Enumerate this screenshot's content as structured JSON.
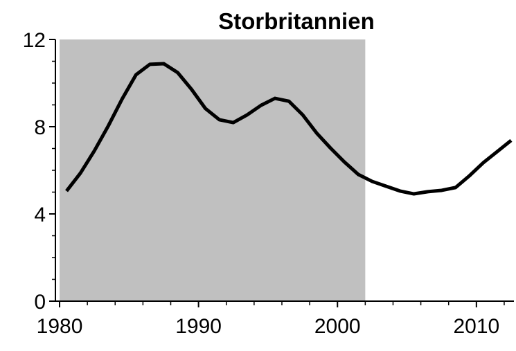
{
  "chart_data": {
    "type": "line",
    "title": "Storbritannien",
    "x": [
      1980.5,
      1981.5,
      1982.5,
      1983.5,
      1984.5,
      1985.5,
      1986.5,
      1987.5,
      1988.5,
      1989.5,
      1990.5,
      1991.5,
      1992.5,
      1993.5,
      1994.5,
      1995.5,
      1996.5,
      1997.5,
      1998.5,
      1999.5,
      2000.5,
      2001.5,
      2002.5,
      2003.5,
      2004.5,
      2005.5,
      2006.5,
      2007.5,
      2008.5,
      2009.5,
      2010.5,
      2011.5,
      2012.5
    ],
    "series": [
      {
        "color": "#000000",
        "values": [
          5.05,
          5.87,
          6.89,
          8.03,
          9.27,
          10.38,
          10.86,
          10.89,
          10.48,
          9.71,
          8.83,
          8.32,
          8.19,
          8.54,
          8.98,
          9.3,
          9.17,
          8.54,
          7.71,
          7.02,
          6.38,
          5.81,
          5.49,
          5.27,
          5.05,
          4.92,
          5.02,
          5.08,
          5.21,
          5.75,
          6.35,
          6.86,
          7.37
        ]
      }
    ],
    "xlim": [
      1979.7,
      2012.7
    ],
    "xticks": [
      1980,
      1990,
      2000,
      2010
    ],
    "xminor_ticks": [
      1982,
      1984,
      1986,
      1988,
      1992,
      1994,
      1996,
      1998,
      2002,
      2004,
      2006,
      2008,
      2012
    ],
    "ylim": [
      0,
      12
    ],
    "yticks": [
      0,
      4,
      8,
      12
    ],
    "yminor_ticks": [
      1,
      2,
      3,
      5,
      6,
      7,
      9,
      10,
      11
    ],
    "shaded_range": [
      1980,
      2002
    ],
    "shade_color": "#c0c0c0"
  }
}
